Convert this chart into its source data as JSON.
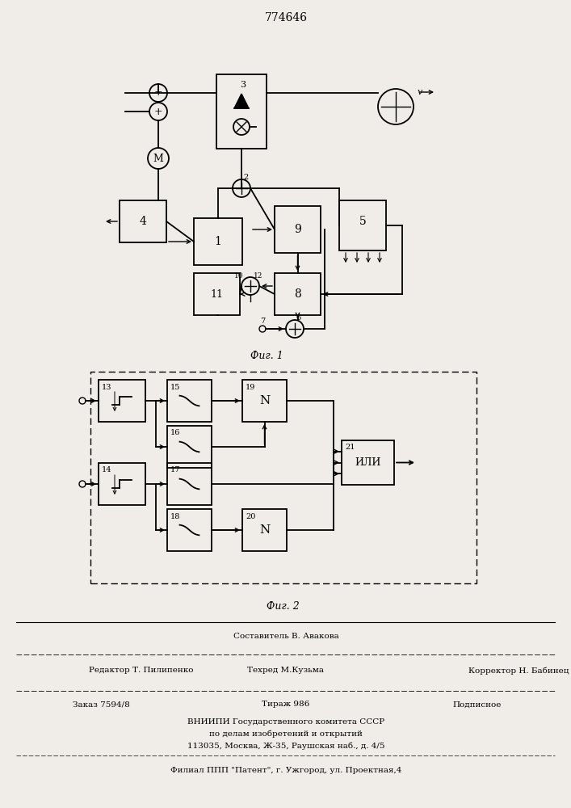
{
  "title": "774646",
  "fig1_caption": "Фиг. 1",
  "fig2_caption": "Фиг. 2",
  "footer": {
    "line0": "Составитель В. Авакова",
    "line1_left": "Редактор Т. Пилипенко",
    "line1_mid": "Техред М.Кузьма",
    "line1_right": "Корректор Н. Бабинец",
    "line2_left": "Заказ 7594/8",
    "line2_mid": "Тираж 986",
    "line2_right": "Подписное",
    "line3": "ВНИИПИ Государственного комитета СССР",
    "line4": "по делам изобретений и открытий",
    "line5": "113035, Москва, Ж-35, Раушская наб., д. 4/5",
    "line6": "Филиал ППП \"Патент\", г. Ужгород, ул. Проектная,4"
  },
  "bg_color": "#f0ede8"
}
